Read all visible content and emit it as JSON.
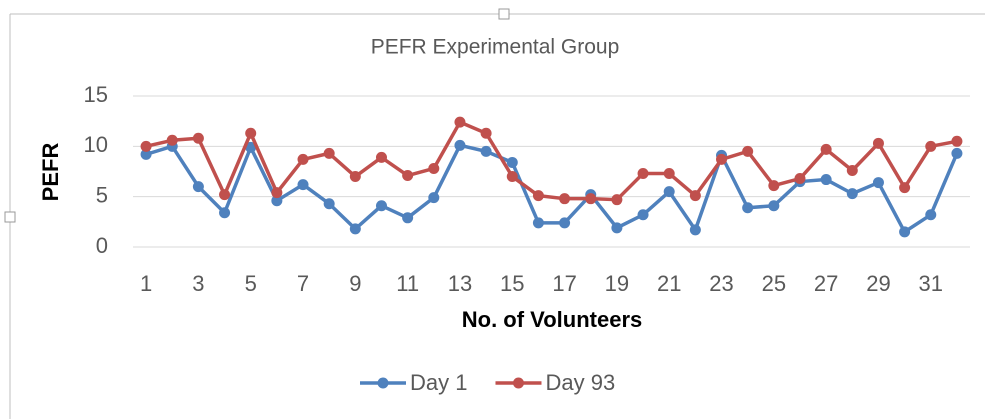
{
  "chart_data": {
    "type": "line",
    "title": "PEFR Experimental Group",
    "x_label": "No. of Volunteers",
    "y_label": "PEFR",
    "categories": [
      1,
      null,
      3,
      null,
      5,
      null,
      7,
      null,
      9,
      null,
      11,
      null,
      13,
      null,
      15,
      null,
      17,
      null,
      19,
      null,
      21,
      null,
      23,
      null,
      25,
      null,
      27,
      null,
      29,
      null,
      31,
      null
    ],
    "series": [
      {
        "name": "Day 1",
        "color": "#4f81bd",
        "values": [
          9.2,
          10.0,
          6.0,
          3.4,
          9.9,
          4.6,
          6.2,
          4.3,
          1.8,
          4.1,
          2.9,
          4.9,
          10.1,
          9.5,
          8.4,
          2.4,
          2.4,
          5.2,
          1.9,
          3.2,
          5.5,
          1.7,
          9.1,
          3.9,
          4.1,
          6.5,
          6.7,
          5.3,
          6.4,
          1.5,
          3.2,
          9.3
        ]
      },
      {
        "name": "Day 93",
        "color": "#c0504d",
        "values": [
          10.0,
          10.6,
          10.8,
          5.2,
          11.3,
          5.4,
          8.7,
          9.3,
          7.0,
          8.9,
          7.1,
          7.8,
          12.4,
          11.3,
          7.0,
          5.1,
          4.8,
          4.8,
          4.7,
          7.3,
          7.3,
          5.1,
          8.7,
          9.5,
          6.1,
          6.8,
          9.7,
          7.6,
          10.3,
          5.9,
          10.0,
          10.5
        ]
      }
    ],
    "ylim": [
      0,
      15
    ],
    "yticks": [
      0,
      5,
      10,
      15
    ],
    "grid": true,
    "legend": "bottom"
  }
}
